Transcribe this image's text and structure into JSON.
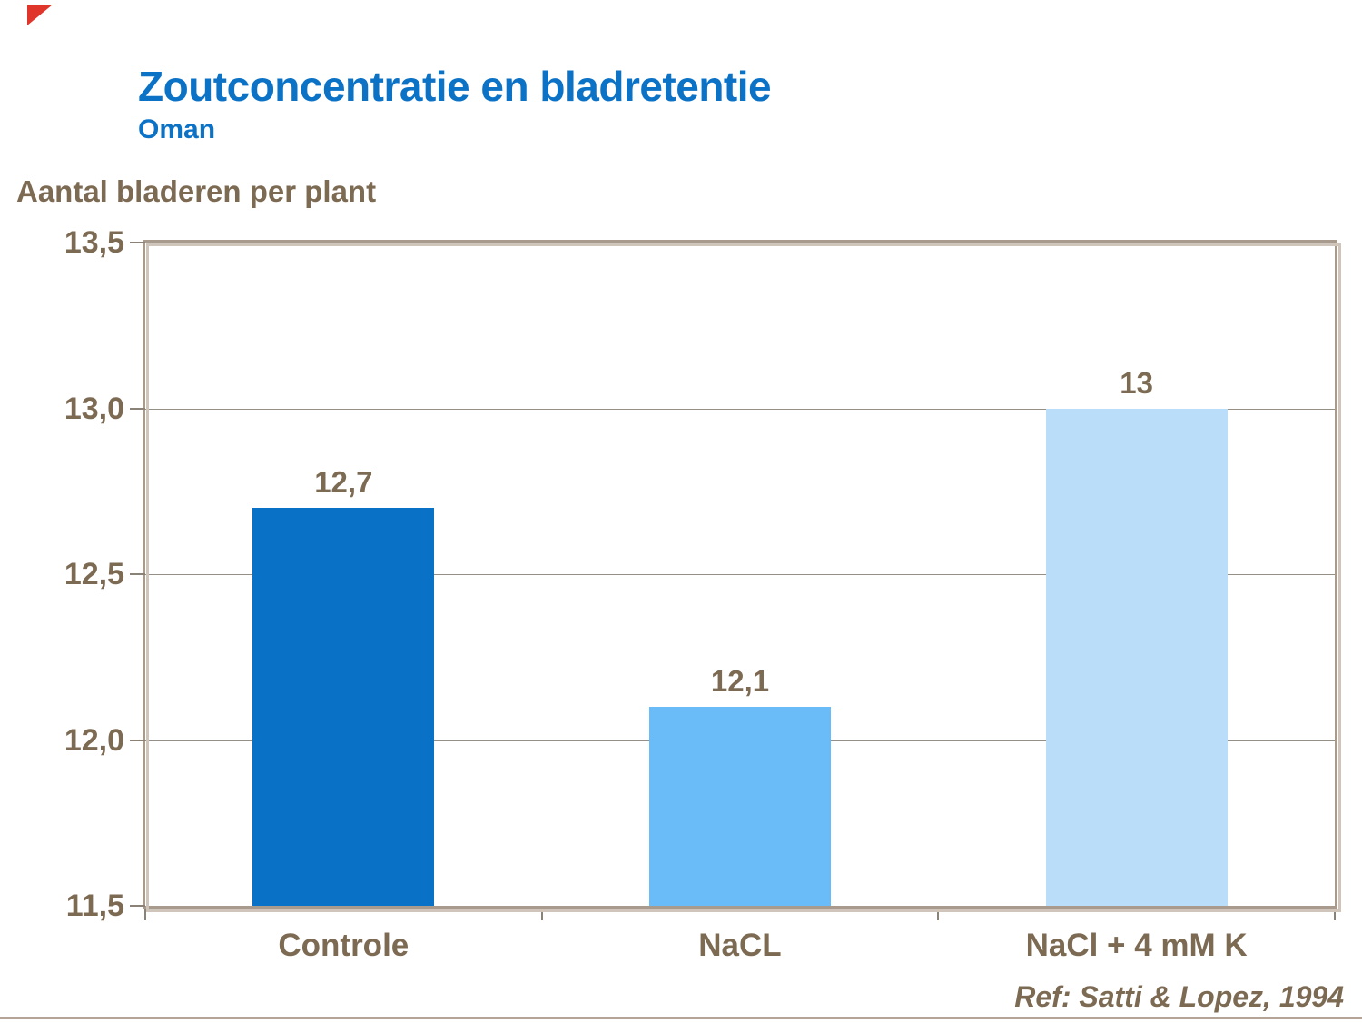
{
  "header": {
    "title": "Zoutconcentratie en bladretentie",
    "subtitle": "Oman"
  },
  "chart_data": {
    "type": "bar",
    "y_axis_title": "Aantal bladeren per plant",
    "categories": [
      "Controle",
      "NaCL",
      "NaCl + 4 mM K"
    ],
    "values": [
      12.7,
      12.1,
      13
    ],
    "value_labels": [
      "12,7",
      "12,1",
      "13"
    ],
    "ylim": [
      11.5,
      13.5
    ],
    "yticks": [
      13.5,
      13.0,
      12.5,
      12.0,
      11.5
    ],
    "ytick_labels": [
      "13,5",
      "13,0",
      "12,5",
      "12,0",
      "11,5"
    ],
    "grid": true,
    "legend": "none",
    "bar_colors": [
      "#0A72C6",
      "#69BCF8",
      "#BADDFA"
    ]
  },
  "footer": {
    "reference": "Ref: Satti & Lopez, 1994"
  },
  "colors": {
    "title_blue": "#0B72C6",
    "text_brown": "#7C6A53",
    "frame": "#A89A8C",
    "frame_shadow": "#CFC5BB",
    "gridline": "#968F86",
    "tick": "#8A8277",
    "bottom_rule": "#B3A497",
    "corner_red": "#E0352B"
  }
}
